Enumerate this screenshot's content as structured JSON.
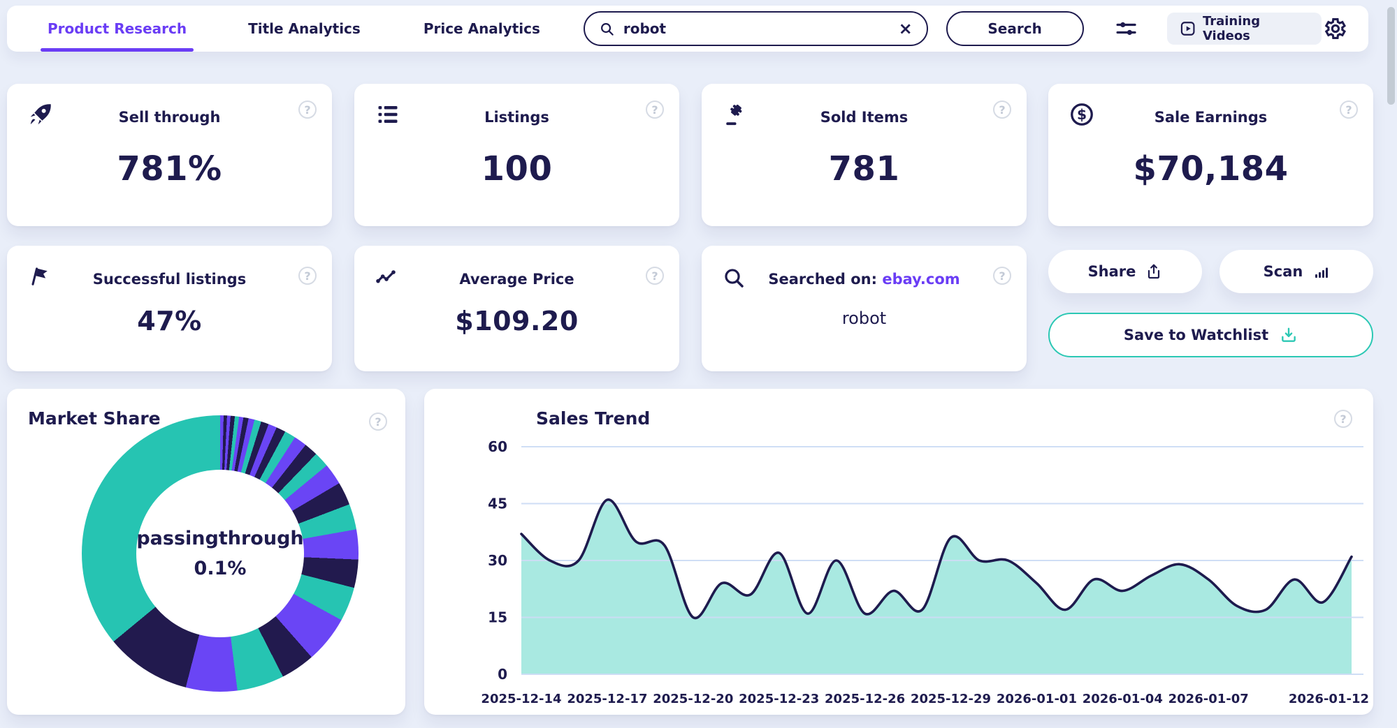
{
  "nav": {
    "tabs": [
      {
        "label": "Product Research",
        "active": true
      },
      {
        "label": "Title Analytics",
        "active": false
      },
      {
        "label": "Price Analytics",
        "active": false
      }
    ],
    "search": {
      "value": "robot",
      "clear_label": "×"
    },
    "search_button": "Search",
    "training_videos": "Training Videos"
  },
  "stats_row1": [
    {
      "icon": "rocket-icon",
      "title": "Sell through",
      "value": "781%"
    },
    {
      "icon": "list-icon",
      "title": "Listings",
      "value": "100"
    },
    {
      "icon": "gavel-icon",
      "title": "Sold Items",
      "value": "781"
    },
    {
      "icon": "dollar-circle-icon",
      "title": "Sale Earnings",
      "value": "$70,184"
    }
  ],
  "stats_row2": [
    {
      "icon": "flag-icon",
      "title": "Successful listings",
      "value": "47%"
    },
    {
      "icon": "trend-icon",
      "title": "Average Price",
      "value": "$109.20"
    },
    {
      "icon": "search-icon",
      "title_prefix": "Searched on:",
      "title_link": "ebay.com",
      "value": "robot"
    }
  ],
  "actions": {
    "share": "Share",
    "scan": "Scan",
    "save": "Save to Watchlist"
  },
  "help_glyph": "?",
  "colors": {
    "navy": "#1e1b4e",
    "purple": "#6a3df5",
    "teal": "#26c4b2",
    "area_fill": "#a9e9e1",
    "gridline": "#cdddf5",
    "background": "#e9eef9",
    "link": "#6a3df5",
    "save_border": "#2cc8b4"
  },
  "chart_data": [
    {
      "type": "pie",
      "variant": "donut",
      "title": "Market Share",
      "center_label": "passingthrough",
      "center_value": "0.1%",
      "note": "segment sizes estimated from pixels; only center label/value are shown in UI",
      "segments": [
        {
          "pct": 0.4,
          "color": "#6a45f5"
        },
        {
          "pct": 0.4,
          "color": "#221a4e"
        },
        {
          "pct": 0.4,
          "color": "#6a45f5"
        },
        {
          "pct": 0.5,
          "color": "#221a4e"
        },
        {
          "pct": 0.5,
          "color": "#26c4b2"
        },
        {
          "pct": 0.5,
          "color": "#6a45f5"
        },
        {
          "pct": 0.6,
          "color": "#221a4e"
        },
        {
          "pct": 0.7,
          "color": "#6a45f5"
        },
        {
          "pct": 0.8,
          "color": "#26c4b2"
        },
        {
          "pct": 0.9,
          "color": "#221a4e"
        },
        {
          "pct": 1.0,
          "color": "#6a45f5"
        },
        {
          "pct": 1.1,
          "color": "#221a4e"
        },
        {
          "pct": 1.3,
          "color": "#26c4b2"
        },
        {
          "pct": 1.5,
          "color": "#6a45f5"
        },
        {
          "pct": 1.6,
          "color": "#221a4e"
        },
        {
          "pct": 1.8,
          "color": "#26c4b2"
        },
        {
          "pct": 2.5,
          "color": "#6a45f5"
        },
        {
          "pct": 2.7,
          "color": "#221a4e"
        },
        {
          "pct": 3.0,
          "color": "#26c4b2"
        },
        {
          "pct": 3.5,
          "color": "#6a45f5"
        },
        {
          "pct": 3.3,
          "color": "#221a4e"
        },
        {
          "pct": 4.0,
          "color": "#26c4b2"
        },
        {
          "pct": 5.5,
          "color": "#6a45f5"
        },
        {
          "pct": 4.0,
          "color": "#221a4e"
        },
        {
          "pct": 5.5,
          "color": "#26c4b2"
        },
        {
          "pct": 6.0,
          "color": "#6a45f5"
        },
        {
          "pct": 10.0,
          "color": "#221a4e"
        },
        {
          "pct": 36.0,
          "color": "#26c4b2"
        }
      ]
    },
    {
      "type": "area",
      "title": "Sales Trend",
      "x": [
        "2025-12-14",
        "2025-12-15",
        "2025-12-16",
        "2025-12-17",
        "2025-12-18",
        "2025-12-19",
        "2025-12-20",
        "2025-12-21",
        "2025-12-22",
        "2025-12-23",
        "2025-12-24",
        "2025-12-25",
        "2025-12-26",
        "2025-12-27",
        "2025-12-28",
        "2025-12-29",
        "2025-12-30",
        "2025-12-31",
        "2026-01-01",
        "2026-01-02",
        "2026-01-03",
        "2026-01-04",
        "2026-01-05",
        "2026-01-06",
        "2026-01-07",
        "2026-01-08",
        "2026-01-09",
        "2026-01-10",
        "2026-01-11",
        "2026-01-12"
      ],
      "values": [
        37,
        30,
        30,
        46,
        35,
        34,
        15,
        24,
        21,
        32,
        16,
        30,
        16,
        22,
        17,
        36,
        30,
        30,
        24,
        17,
        25,
        22,
        26,
        29,
        25,
        18,
        17,
        25,
        19,
        31
      ],
      "ylim": [
        0,
        60
      ],
      "yticks": [
        0,
        15,
        30,
        45,
        60
      ],
      "x_label_indices": [
        0,
        3,
        6,
        9,
        12,
        15,
        18,
        21,
        24,
        29
      ],
      "grid": true,
      "legend": "none",
      "line_color": "#1e1b4e",
      "fill_color": "#a9e9e1"
    }
  ]
}
